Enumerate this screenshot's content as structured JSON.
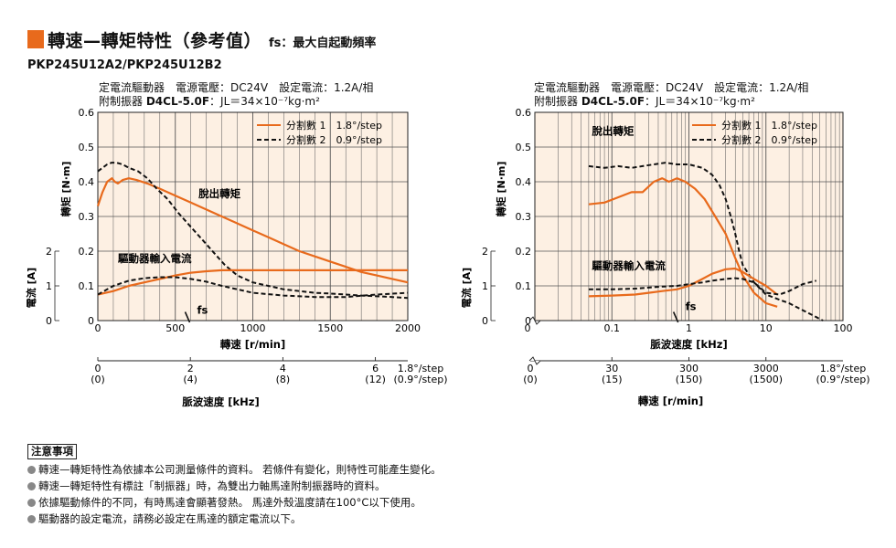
{
  "header": {
    "title": "轉速—轉矩特性（參考值）",
    "subtitle": "fs：最大自起動頻率"
  },
  "model": "PKP245U12A2/PKP245U12B2",
  "conditions": {
    "line1": "定電流驅動器　電源電壓：DC24V　設定電流：1.2A/相",
    "line2_prefix": "附制振器",
    "line2_bold": "D4CL-5.0F",
    "line2_suffix": "：JL＝34×10⁻⁷kg·m²"
  },
  "notes": {
    "title": "注意事項",
    "items": [
      "轉速—轉矩特性為依據本公司測量條件的資料。 若條件有變化，則特性可能產生變化。",
      "轉速—轉矩特性有標註「制振器」時，為雙出力軸馬達附制振器時的資料。",
      "依據驅動條件的不同，有時馬達會顯著發熱。 馬達外殼溫度請在100°C以下使用。",
      "驅動器的設定電流，請務必設定在馬達的額定電流以下。"
    ]
  },
  "colors": {
    "accent": "#e86a1c",
    "background": "#fdf0e3",
    "grid": "#555555",
    "dashed": "#111111"
  },
  "chart_data": [
    {
      "type": "line",
      "xlabel": "轉速 [r/min]",
      "ylabel": "轉矩 [N·m]",
      "ylabel2": "電流 [A]",
      "xlabel2": "脈波速度 [kHz]",
      "xlim": [
        0,
        2000
      ],
      "ylim": [
        0,
        0.6
      ],
      "xticks": [
        0,
        500,
        1000,
        1500,
        2000
      ],
      "yticks": [
        0.6,
        0.5,
        0.4,
        0.3,
        0.2,
        0.1,
        0
      ],
      "y2ticks": [
        2,
        1,
        0
      ],
      "pulse_axis": {
        "ticks": [
          {
            "value": 0,
            "label": "0",
            "label2": "(0)"
          },
          {
            "value": 2,
            "label": "2",
            "label2": "(4)"
          },
          {
            "value": 4,
            "label": "4",
            "label2": "(8)"
          },
          {
            "value": 6,
            "label": "6",
            "label2": "(12)"
          }
        ],
        "max": 6.7,
        "unit": "1.8°/step",
        "unit2": "(0.9°/step)"
      },
      "legend": {
        "position": "top-right",
        "items": [
          {
            "label": "分割數 1　1.8°/step",
            "style": "solid"
          },
          {
            "label": "分割數 2　0.9°/step",
            "style": "dashed"
          }
        ]
      },
      "annotations": [
        {
          "text": "脫出轉矩",
          "x": 650,
          "y": 0.355
        },
        {
          "text": "驅動器輸入電流",
          "x": 130,
          "y": 0.168
        },
        {
          "text": "fs",
          "x": 640,
          "y": 0.02
        }
      ],
      "series": [
        {
          "name": "分割數 1　1.8°/step",
          "kind": "torque",
          "style": "solid",
          "x": [
            0,
            30,
            60,
            90,
            110,
            130,
            160,
            200,
            250,
            320,
            400,
            500,
            600,
            700,
            800,
            900,
            1000,
            1100,
            1200,
            1300,
            1400,
            1500,
            1600,
            1700,
            1800,
            1900,
            2000
          ],
          "y": [
            0.33,
            0.37,
            0.4,
            0.41,
            0.4,
            0.395,
            0.405,
            0.41,
            0.405,
            0.395,
            0.38,
            0.36,
            0.34,
            0.32,
            0.3,
            0.28,
            0.26,
            0.24,
            0.22,
            0.2,
            0.185,
            0.17,
            0.155,
            0.14,
            0.13,
            0.12,
            0.11
          ]
        },
        {
          "name": "分割數 2　0.9°/step",
          "kind": "torque",
          "style": "dashed",
          "x": [
            0,
            30,
            60,
            90,
            120,
            160,
            200,
            260,
            320,
            380,
            450,
            520,
            600,
            680,
            760,
            820,
            900,
            1000,
            1100,
            1200,
            1300,
            1400,
            1500,
            1600,
            1700,
            1800,
            1900,
            2000
          ],
          "y": [
            0.43,
            0.44,
            0.45,
            0.455,
            0.455,
            0.45,
            0.44,
            0.43,
            0.41,
            0.38,
            0.35,
            0.31,
            0.27,
            0.23,
            0.19,
            0.16,
            0.13,
            0.11,
            0.1,
            0.09,
            0.085,
            0.08,
            0.078,
            0.075,
            0.072,
            0.07,
            0.068,
            0.065
          ]
        },
        {
          "name": "分割數 1 電流",
          "kind": "current",
          "style": "solid",
          "x": [
            0,
            100,
            200,
            300,
            400,
            500,
            600,
            700,
            800,
            900,
            1000,
            1200,
            1400,
            1600,
            1800,
            2000
          ],
          "y": [
            0.075,
            0.085,
            0.1,
            0.11,
            0.12,
            0.13,
            0.138,
            0.142,
            0.145,
            0.145,
            0.145,
            0.145,
            0.145,
            0.145,
            0.145,
            0.145
          ]
        },
        {
          "name": "分割數 2 電流",
          "kind": "current",
          "style": "dashed",
          "x": [
            0,
            100,
            200,
            300,
            400,
            500,
            600,
            700,
            800,
            900,
            1000,
            1200,
            1400,
            1600,
            1800,
            2000
          ],
          "y": [
            0.075,
            0.1,
            0.115,
            0.122,
            0.125,
            0.125,
            0.12,
            0.112,
            0.1,
            0.09,
            0.08,
            0.072,
            0.068,
            0.068,
            0.075,
            0.08
          ]
        }
      ]
    },
    {
      "type": "line",
      "xscale": "log",
      "xlabel": "脈波速度 [kHz]",
      "ylabel": "轉矩 [N·m]",
      "ylabel2": "電流 [A]",
      "xlabel2": "轉速 [r/min]",
      "xlim": [
        0.01,
        100
      ],
      "ylim": [
        0,
        0.6
      ],
      "xticks": [
        0.1,
        1,
        10,
        100
      ],
      "yticks": [
        0.6,
        0.5,
        0.4,
        0.3,
        0.2,
        0.1,
        0
      ],
      "y2ticks": [
        2,
        1,
        0
      ],
      "rpm_axis": {
        "ticks": [
          {
            "value": 0.1,
            "label": "30",
            "label2": "(15)"
          },
          {
            "value": 1,
            "label": "300",
            "label2": "(150)"
          },
          {
            "value": 10,
            "label": "3000",
            "label2": "(1500)"
          }
        ],
        "zero_label": "0",
        "zero_label2": "(0)",
        "unit": "1.8°/step",
        "unit2": "(0.9°/step)"
      },
      "legend": {
        "position": "top-right",
        "items": [
          {
            "label": "分割數 1　1.8°/step",
            "style": "solid"
          },
          {
            "label": "分割數 2　0.9°/step",
            "style": "dashed"
          }
        ]
      },
      "annotations": [
        {
          "text": "脫出轉矩",
          "x": 0.055,
          "y": 0.535
        },
        {
          "text": "驅動器輸入電流",
          "x": 0.055,
          "y": 0.148
        },
        {
          "text": "fs",
          "x": 0.9,
          "y": 0.03
        }
      ],
      "series": [
        {
          "name": "分割數 1　1.8°/step",
          "kind": "torque",
          "style": "solid",
          "x": [
            0.05,
            0.08,
            0.12,
            0.18,
            0.25,
            0.35,
            0.45,
            0.55,
            0.7,
            0.9,
            1.2,
            1.6,
            2.2,
            3,
            4,
            5,
            7,
            10,
            14
          ],
          "y": [
            0.335,
            0.34,
            0.355,
            0.37,
            0.37,
            0.4,
            0.41,
            0.4,
            0.41,
            0.4,
            0.38,
            0.35,
            0.3,
            0.25,
            0.18,
            0.13,
            0.08,
            0.05,
            0.04
          ]
        },
        {
          "name": "分割數 2　0.9°/step",
          "kind": "torque",
          "style": "dashed",
          "x": [
            0.05,
            0.08,
            0.12,
            0.18,
            0.25,
            0.35,
            0.5,
            0.7,
            1,
            1.5,
            2,
            2.5,
            3,
            3.5,
            4,
            4.5,
            5,
            7,
            10,
            15,
            20,
            30,
            45,
            55
          ],
          "y": [
            0.445,
            0.44,
            0.445,
            0.44,
            0.445,
            0.45,
            0.455,
            0.45,
            0.45,
            0.44,
            0.42,
            0.39,
            0.35,
            0.3,
            0.25,
            0.2,
            0.16,
            0.11,
            0.075,
            0.06,
            0.05,
            0.03,
            0.01,
            0
          ]
        },
        {
          "name": "分割數 1 電流",
          "kind": "current",
          "style": "solid",
          "x": [
            0.05,
            0.1,
            0.2,
            0.3,
            0.45,
            0.7,
            1,
            1.5,
            2,
            3,
            4,
            5,
            7,
            10,
            14
          ],
          "y": [
            0.07,
            0.072,
            0.075,
            0.08,
            0.085,
            0.09,
            0.1,
            0.12,
            0.135,
            0.148,
            0.15,
            0.14,
            0.12,
            0.1,
            0.075
          ]
        },
        {
          "name": "分割數 2 電流",
          "kind": "current",
          "style": "dashed",
          "x": [
            0.05,
            0.1,
            0.2,
            0.3,
            0.45,
            0.7,
            1,
            1.5,
            2,
            3,
            4,
            5,
            7,
            10,
            15,
            20,
            30,
            45
          ],
          "y": [
            0.09,
            0.09,
            0.092,
            0.095,
            0.098,
            0.1,
            0.105,
            0.11,
            0.115,
            0.12,
            0.122,
            0.12,
            0.11,
            0.08,
            0.075,
            0.085,
            0.105,
            0.115
          ]
        }
      ]
    }
  ]
}
